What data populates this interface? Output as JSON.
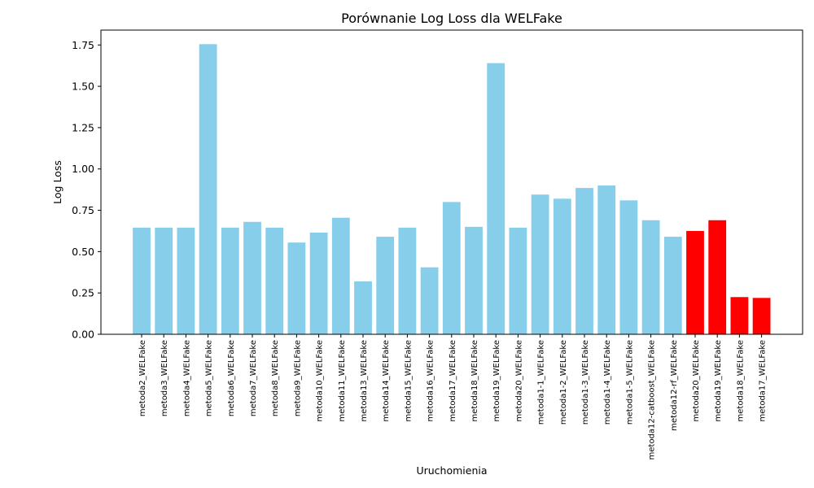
{
  "chart_data": {
    "type": "bar",
    "title": "Porównanie Log Loss dla WELFake",
    "xlabel": "Uruchomienia",
    "ylabel": "Log Loss",
    "ylim": [
      0,
      1.84
    ],
    "yticks": [
      0.0,
      0.25,
      0.5,
      0.75,
      1.0,
      1.25,
      1.5,
      1.75
    ],
    "grid": false,
    "colors": {
      "default": "#87CEEB",
      "highlight": "#FF0000"
    },
    "categories": [
      "metoda2_WELFake",
      "metoda3_WELFake",
      "metoda4_WELFake",
      "metoda5_WELFake",
      "metoda6_WELFake",
      "metoda7_WELFake",
      "metoda8_WELFake",
      "metoda9_WELFake",
      "metoda10_WELFake",
      "metoda11_WELFake",
      "metoda13_WELFake",
      "metoda14_WELFake",
      "metoda15_WELFake",
      "metoda16_WELFake",
      "metoda17_WELFake",
      "metoda18_WELFake",
      "metoda19_WELFake",
      "metoda20_WELFake",
      "metoda1-1_WELFake",
      "metoda1-2_WELFake",
      "metoda1-3_WELFake",
      "metoda1-4_WELFake",
      "metoda1-5_WELFake",
      "metoda12-catboost_WELFake",
      "metoda12-rf_WELFake",
      "metoda20_WELFake",
      "metoda19_WELFake",
      "metoda18_WELFake",
      "metoda17_WELFake"
    ],
    "values": [
      0.645,
      0.645,
      0.645,
      1.755,
      0.645,
      0.68,
      0.645,
      0.555,
      0.615,
      0.705,
      0.32,
      0.59,
      0.645,
      0.405,
      0.8,
      0.65,
      1.64,
      0.645,
      0.845,
      0.82,
      0.885,
      0.9,
      0.81,
      0.69,
      0.59,
      0.625,
      0.69,
      0.225,
      0.22
    ],
    "highlighted": [
      false,
      false,
      false,
      false,
      false,
      false,
      false,
      false,
      false,
      false,
      false,
      false,
      false,
      false,
      false,
      false,
      false,
      false,
      false,
      false,
      false,
      false,
      false,
      false,
      false,
      true,
      true,
      true,
      true
    ]
  }
}
